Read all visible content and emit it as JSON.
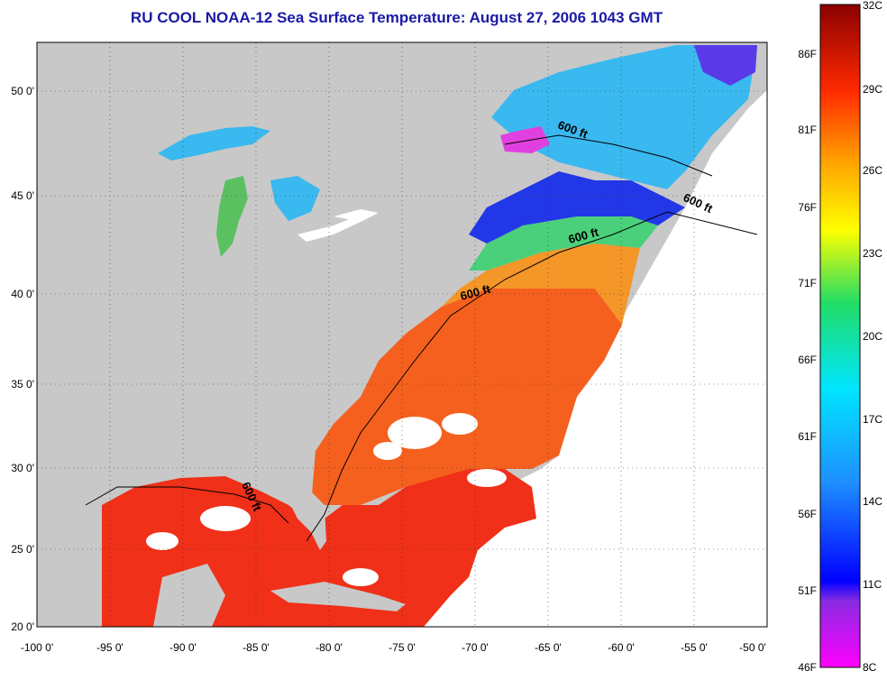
{
  "title": "RU COOL  NOAA-12  Sea Surface Temperature:  August 27, 2006 1043 GMT",
  "colors": {
    "land": "#c8c8c8",
    "nodata": "#ffffff",
    "warm": "#f03018",
    "hot_orange": "#f57a18",
    "cool": "#3ab8f0",
    "cold": "#2238e8",
    "magenta": "#e040e0"
  },
  "map": {
    "lon_labels": [
      "-100 0'",
      "-95 0'",
      "-90 0'",
      "-85 0'",
      "-80 0'",
      "-75 0'",
      "-70 0'",
      "-65 0'",
      "-60 0'",
      "-55 0'",
      "-50 0'"
    ],
    "lat_labels": [
      "50 0'",
      "45 0'",
      "40 0'",
      "35 0'",
      "30 0'",
      "25 0'",
      "20 0'"
    ],
    "isobath_labels": [
      "600 ft",
      "600 ft",
      "600 ft",
      "600 ft",
      "600 ft"
    ]
  },
  "colorbar": {
    "celsius": [
      "32C",
      "29C",
      "26C",
      "23C",
      "20C",
      "17C",
      "14C",
      "11C",
      "8C"
    ],
    "fahrenheit": [
      "86F",
      "81F",
      "76F",
      "71F",
      "66F",
      "61F",
      "56F",
      "51F",
      "46F"
    ]
  }
}
